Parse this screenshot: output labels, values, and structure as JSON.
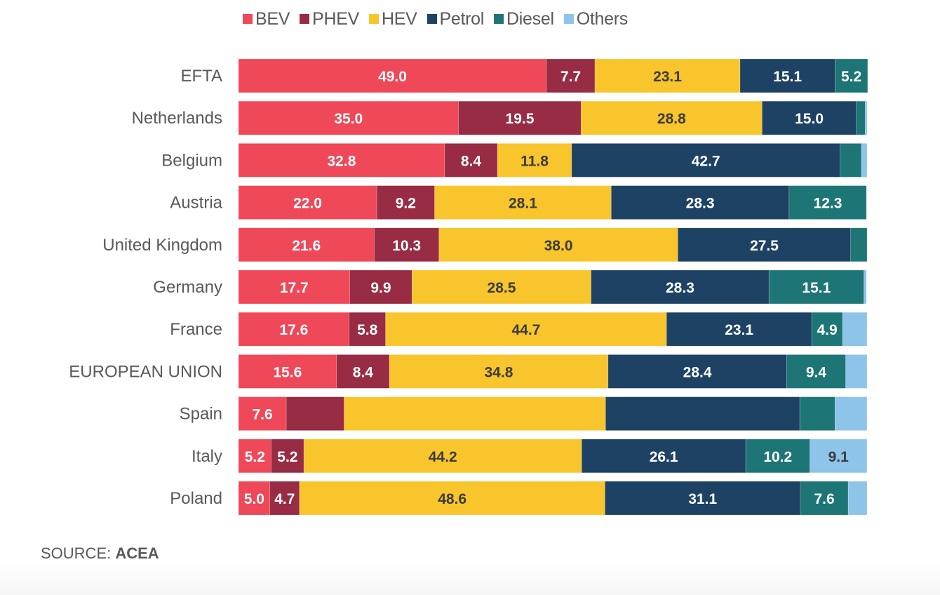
{
  "chart_data": {
    "type": "bar",
    "orientation": "horizontal",
    "stacked": true,
    "title": "",
    "xlabel": "",
    "ylabel": "",
    "xlim": [
      0,
      100
    ],
    "grid": false,
    "legend_position": "top",
    "categories": [
      "EFTA",
      "Netherlands",
      "Belgium",
      "Austria",
      "United Kingdom",
      "Germany",
      "France",
      "EUROPEAN UNION",
      "Spain",
      "Italy",
      "Poland"
    ],
    "series": [
      {
        "name": "BEV",
        "color": "#EF4858",
        "text_color": "#ffffff",
        "values": [
          49.0,
          35.0,
          32.8,
          22.0,
          21.6,
          17.7,
          17.6,
          15.6,
          7.6,
          5.2,
          5.0
        ],
        "labels": [
          "49.0",
          "35.0",
          "32.8",
          "22.0",
          "21.6",
          "17.7",
          "17.6",
          "15.6",
          "7.6",
          "5.2",
          "5.0"
        ]
      },
      {
        "name": "PHEV",
        "color": "#972C44",
        "text_color": "#ffffff",
        "values": [
          7.7,
          19.5,
          8.4,
          9.2,
          10.3,
          9.9,
          5.8,
          8.4,
          9.2,
          5.2,
          4.7
        ],
        "labels": [
          "7.7",
          "19.5",
          "8.4",
          "9.2",
          "10.3",
          "9.9",
          "5.8",
          "8.4",
          null,
          "5.2",
          "4.7"
        ]
      },
      {
        "name": "HEV",
        "color": "#F8C52C",
        "text_color": "#3b3b3b",
        "values": [
          23.1,
          28.8,
          11.8,
          28.1,
          38.0,
          28.5,
          44.7,
          34.8,
          41.6,
          44.2,
          48.6
        ],
        "labels": [
          "23.1",
          "28.8",
          "11.8",
          "28.1",
          "38.0",
          "28.5",
          "44.7",
          "34.8",
          null,
          "44.2",
          "48.6"
        ]
      },
      {
        "name": "Petrol",
        "color": "#1D4263",
        "text_color": "#ffffff",
        "values": [
          15.1,
          15.0,
          42.7,
          28.3,
          27.5,
          28.3,
          23.1,
          28.4,
          30.9,
          26.1,
          31.1
        ],
        "labels": [
          "15.1",
          "15.0",
          "42.7",
          "28.3",
          "27.5",
          "28.3",
          "23.1",
          "28.4",
          null,
          "26.1",
          "31.1"
        ]
      },
      {
        "name": "Diesel",
        "color": "#1D7675",
        "text_color": "#ffffff",
        "values": [
          5.2,
          1.4,
          3.4,
          12.3,
          2.6,
          15.1,
          4.9,
          9.4,
          5.6,
          10.2,
          7.6
        ],
        "labels": [
          "5.2",
          null,
          null,
          "12.3",
          null,
          "15.1",
          "4.9",
          "9.4",
          null,
          "10.2",
          "7.6"
        ]
      },
      {
        "name": "Others",
        "color": "#8EC3EA",
        "text_color": "#3b3b3b",
        "values": [
          0.0,
          0.3,
          0.9,
          0.0,
          0.0,
          0.4,
          3.9,
          3.4,
          5.1,
          9.1,
          3.0
        ],
        "labels": [
          null,
          null,
          null,
          null,
          null,
          null,
          null,
          null,
          null,
          "9.1",
          null
        ]
      }
    ]
  },
  "source": {
    "prefix": "SOURCE: ",
    "name": "ACEA"
  }
}
